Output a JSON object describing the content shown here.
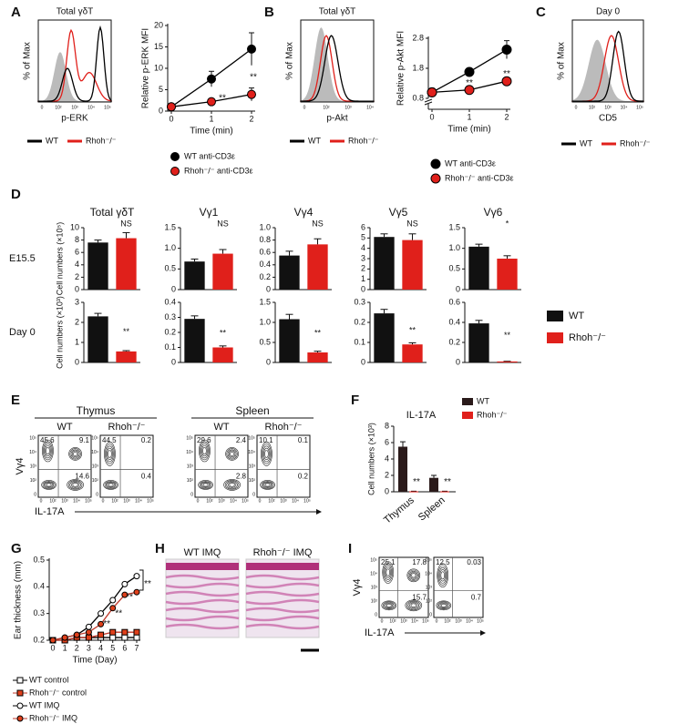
{
  "panel_labels": [
    "A",
    "B",
    "C",
    "D",
    "E",
    "F",
    "G",
    "H",
    "I"
  ],
  "flow_histograms": [
    {
      "title": "Total γδT",
      "ylabel": "% of Max",
      "xlabel": "p-ERK",
      "xticks": [
        "0",
        "10²",
        "10³",
        "10⁴",
        "10⁵"
      ],
      "legend": [
        {
          "name": "WT",
          "color": "#000000"
        },
        {
          "name": "Rhoh⁻/⁻",
          "color": "#e0201b"
        }
      ]
    },
    {
      "title": "Total γδT",
      "ylabel": "% of Max",
      "xlabel": "p-Akt",
      "xticks": [
        "0",
        "10²",
        "10³",
        "10⁴"
      ],
      "legend": [
        {
          "name": "WT",
          "color": "#000000"
        },
        {
          "name": "Rhoh⁻/⁻",
          "color": "#e0201b"
        }
      ]
    },
    {
      "title": "Day 0",
      "ylabel": "% of Max",
      "xlabel": "CD5",
      "xticks": [
        "0",
        "10²",
        "10³",
        "10⁴",
        "10⁵"
      ],
      "legend": [
        {
          "name": "WT",
          "color": "#000000"
        },
        {
          "name": "Rhoh⁻/⁻",
          "color": "#e0201b"
        }
      ]
    }
  ],
  "chart_data": [
    {
      "type": "line",
      "ylabel": "Relative p-ERK MFI",
      "xlabel": "Time (min)",
      "x": [
        0,
        1,
        2
      ],
      "xlim": [
        0,
        2
      ],
      "xticks": [
        0,
        1,
        2
      ],
      "ylim": [
        0,
        20
      ],
      "yticks": [
        0,
        5,
        10,
        15,
        20
      ],
      "series": [
        {
          "name": "WT anti-CD3ε",
          "color": "#000000",
          "fill": "#000000",
          "marker": "circle",
          "values": [
            1,
            7.5,
            14.5
          ],
          "errors": [
            0.3,
            1.8,
            3.8
          ]
        },
        {
          "name": "Rhoh⁻/⁻ anti-CD3ε",
          "color": "#000000",
          "fill": "#e0201b",
          "marker": "circle",
          "values": [
            1,
            2.2,
            3.9
          ],
          "errors": [
            0.3,
            0.6,
            1.5
          ]
        }
      ],
      "annotations": [
        "**",
        "**"
      ]
    },
    {
      "type": "line",
      "ylabel": "Relative p-Akt MFI",
      "xlabel": "Time (min)",
      "x": [
        0,
        1,
        2
      ],
      "xlim": [
        0,
        2
      ],
      "xticks": [
        0,
        1,
        2
      ],
      "ylim": [
        0.8,
        2.8
      ],
      "yticks": [
        0.8,
        1.8,
        2.8
      ],
      "series": [
        {
          "name": "WT anti-CD3ε",
          "color": "#000000",
          "fill": "#000000",
          "marker": "circle",
          "values": [
            1.0,
            1.68,
            2.42
          ],
          "errors": [
            0.02,
            0.1,
            0.3
          ]
        },
        {
          "name": "Rhoh⁻/⁻ anti-CD3ε",
          "color": "#000000",
          "fill": "#e0201b",
          "marker": "circle",
          "values": [
            1.0,
            1.08,
            1.37
          ],
          "errors": [
            0.02,
            0.04,
            0.05
          ]
        }
      ],
      "annotations": [
        "**",
        "**"
      ]
    },
    {
      "type": "bar",
      "title": "Total γδT",
      "ylabel": "Cell numbers (×10⁵)",
      "categories": [
        null,
        null
      ],
      "values": [
        7.6,
        8.3
      ],
      "errors": [
        0.4,
        0.9
      ],
      "colors": [
        "#111111",
        "#e0201b"
      ],
      "ylim": [
        0,
        10
      ],
      "yticks": [
        0,
        2,
        4,
        6,
        8,
        10
      ],
      "annotations": [
        "NS"
      ]
    },
    {
      "type": "bar",
      "title": "Vγ1",
      "categories": [
        null,
        null
      ],
      "values": [
        0.68,
        0.87
      ],
      "errors": [
        0.06,
        0.1
      ],
      "colors": [
        "#111111",
        "#e0201b"
      ],
      "ylim": [
        0,
        1.5
      ],
      "yticks": [
        0,
        0.5,
        {
          "value": 1,
          "label": "1.0"
        },
        1.5
      ],
      "annotations": [
        "NS"
      ]
    },
    {
      "type": "bar",
      "title": "Vγ4",
      "categories": [
        null,
        null
      ],
      "values": [
        0.55,
        0.73
      ],
      "errors": [
        0.07,
        0.09
      ],
      "colors": [
        "#111111",
        "#e0201b"
      ],
      "ylim": [
        0,
        1
      ],
      "yticks": [
        0,
        0.2,
        0.4,
        0.6,
        0.8,
        {
          "value": 1,
          "label": "1.0"
        }
      ],
      "annotations": [
        "NS"
      ]
    },
    {
      "type": "bar",
      "title": "Vγ5",
      "categories": [
        null,
        null
      ],
      "values": [
        5.1,
        4.8
      ],
      "errors": [
        0.3,
        0.6
      ],
      "colors": [
        "#111111",
        "#e0201b"
      ],
      "ylim": [
        0,
        6
      ],
      "yticks": [
        0,
        1,
        2,
        3,
        4,
        5,
        6
      ],
      "annotations": [
        "NS"
      ]
    },
    {
      "type": "bar",
      "title": "Vγ6",
      "categories": [
        null,
        null
      ],
      "values": [
        1.04,
        0.75
      ],
      "errors": [
        0.06,
        0.07
      ],
      "colors": [
        "#111111",
        "#e0201b"
      ],
      "ylim": [
        0,
        1.5
      ],
      "yticks": [
        0,
        0.5,
        {
          "value": 1,
          "label": "1.0"
        },
        1.5
      ],
      "annotations": [
        "*"
      ]
    },
    {
      "type": "bar",
      "ylabel": "Cell numbers (×10³)",
      "categories": [
        null,
        null
      ],
      "values": [
        2.3,
        0.55
      ],
      "errors": [
        0.15,
        0.04
      ],
      "colors": [
        "#111111",
        "#e0201b"
      ],
      "ylim": [
        0,
        3
      ],
      "yticks": [
        0,
        1,
        2,
        3
      ],
      "annotations": [
        "**"
      ]
    },
    {
      "type": "bar",
      "categories": [
        null,
        null
      ],
      "values": [
        0.29,
        0.1
      ],
      "errors": [
        0.02,
        0.01
      ],
      "colors": [
        "#111111",
        "#e0201b"
      ],
      "ylim": [
        0,
        0.4
      ],
      "yticks": [
        0,
        0.1,
        0.2,
        0.3,
        0.4
      ],
      "annotations": [
        "**"
      ]
    },
    {
      "type": "bar",
      "categories": [
        null,
        null
      ],
      "values": [
        1.08,
        0.25
      ],
      "errors": [
        0.12,
        0.03
      ],
      "colors": [
        "#111111",
        "#e0201b"
      ],
      "ylim": [
        0,
        1.5
      ],
      "yticks": [
        0,
        0.5,
        {
          "value": 1,
          "label": "1.0"
        },
        1.5
      ],
      "annotations": [
        "**"
      ]
    },
    {
      "type": "bar",
      "categories": [
        null,
        null
      ],
      "values": [
        0.245,
        0.09
      ],
      "errors": [
        0.02,
        0.008
      ],
      "colors": [
        "#111111",
        "#e0201b"
      ],
      "ylim": [
        0,
        0.3
      ],
      "yticks": [
        0,
        0.1,
        0.2,
        0.3
      ],
      "annotations": [
        "**"
      ]
    },
    {
      "type": "bar",
      "categories": [
        null,
        null
      ],
      "values": [
        0.39,
        0.01
      ],
      "errors": [
        0.03,
        0.002
      ],
      "colors": [
        "#111111",
        "#e0201b"
      ],
      "ylim": [
        0,
        0.6
      ],
      "yticks": [
        0,
        0.2,
        0.4,
        0.6
      ],
      "annotations": [
        "**"
      ]
    },
    {
      "type": "grouped-bar",
      "title": "IL-17A",
      "ylabel": "Cell numbers (×10³)",
      "categories": [
        "Thymus",
        "Spleen"
      ],
      "series": [
        {
          "name": "WT",
          "color": "#2a1a1a",
          "values": [
            5.5,
            1.7
          ],
          "errors": [
            0.6,
            0.3
          ]
        },
        {
          "name": "Rhoh⁻/⁻",
          "color": "#e0201b",
          "values": [
            0.05,
            0.05
          ],
          "errors": [
            0.02,
            0.02
          ]
        }
      ],
      "ylim": [
        0,
        8
      ],
      "yticks": [
        0,
        2,
        4,
        6,
        8
      ],
      "annotations": [
        "**",
        "**"
      ]
    },
    {
      "type": "line",
      "ylabel": "Ear thickness (mm)",
      "xlabel": "Time (Day)",
      "x": [
        0,
        1,
        2,
        3,
        4,
        5,
        6,
        7
      ],
      "xlim": [
        0,
        7
      ],
      "xticks": [
        0,
        1,
        2,
        3,
        4,
        5,
        6,
        7
      ],
      "ylim": [
        0.2,
        0.5
      ],
      "yticks": [
        0.2,
        0.3,
        0.4,
        0.5
      ],
      "series": [
        {
          "name": "WT control",
          "color": "#000000",
          "fill": "#ffffff",
          "marker": "square",
          "values": [
            0.2,
            0.2,
            0.21,
            0.21,
            0.21,
            0.21,
            0.21,
            0.21
          ]
        },
        {
          "name": "Rhoh⁻/⁻ control",
          "color": "#c0392b",
          "fill": "#e0401b",
          "marker": "square",
          "values": [
            0.2,
            0.2,
            0.21,
            0.21,
            0.22,
            0.23,
            0.23,
            0.23
          ]
        },
        {
          "name": "WT IMQ",
          "color": "#000000",
          "fill": "#ffffff",
          "marker": "circle",
          "values": [
            0.2,
            0.21,
            0.22,
            0.25,
            0.3,
            0.35,
            0.41,
            0.44
          ]
        },
        {
          "name": "Rhoh⁻/⁻ IMQ",
          "color": "#c0392b",
          "fill": "#e0401b",
          "marker": "circle",
          "values": [
            0.2,
            0.21,
            0.22,
            0.23,
            0.26,
            0.32,
            0.37,
            0.38
          ]
        }
      ],
      "annotations": [
        "**",
        "**",
        "**",
        "**"
      ]
    }
  ],
  "d_panel": {
    "rows": [
      "E15.5",
      "Day 0"
    ],
    "legend": [
      {
        "name": "WT",
        "color": "#111111"
      },
      {
        "name": "Rhoh⁻/⁻",
        "color": "#e0201b"
      }
    ]
  },
  "contour_e": {
    "ylabel": "Vγ4",
    "xlabel": "IL-17A",
    "axis_ticks": [
      "0",
      "10²",
      "10³",
      "10⁴",
      "10⁵"
    ],
    "groups": [
      {
        "title": "Thymus",
        "plots": [
          {
            "title": "WT",
            "quadrants": [
              45.6,
              9.1,
              14.6
            ]
          },
          {
            "title": "Rhoh⁻/⁻",
            "quadrants": [
              44.5,
              0.2,
              0.4
            ]
          }
        ]
      },
      {
        "title": "Spleen",
        "plots": [
          {
            "title": "WT",
            "quadrants": [
              29.6,
              2.4,
              2.8
            ]
          },
          {
            "title": "Rhoh⁻/⁻",
            "quadrants": [
              10.1,
              0.1,
              0.2
            ]
          }
        ]
      }
    ]
  },
  "histology": {
    "titles": [
      "WT IMQ",
      "Rhoh⁻/⁻ IMQ"
    ]
  },
  "contour_i": {
    "ylabel": "Vγ4",
    "xlabel": "IL-17A",
    "axis_ticks": [
      "0",
      "10²",
      "10³",
      "10⁴",
      "10⁵"
    ],
    "plots": [
      {
        "quadrants": [
          25.1,
          17.8,
          15.7
        ]
      },
      {
        "quadrants": [
          12.5,
          0.03,
          0.7
        ]
      }
    ]
  }
}
